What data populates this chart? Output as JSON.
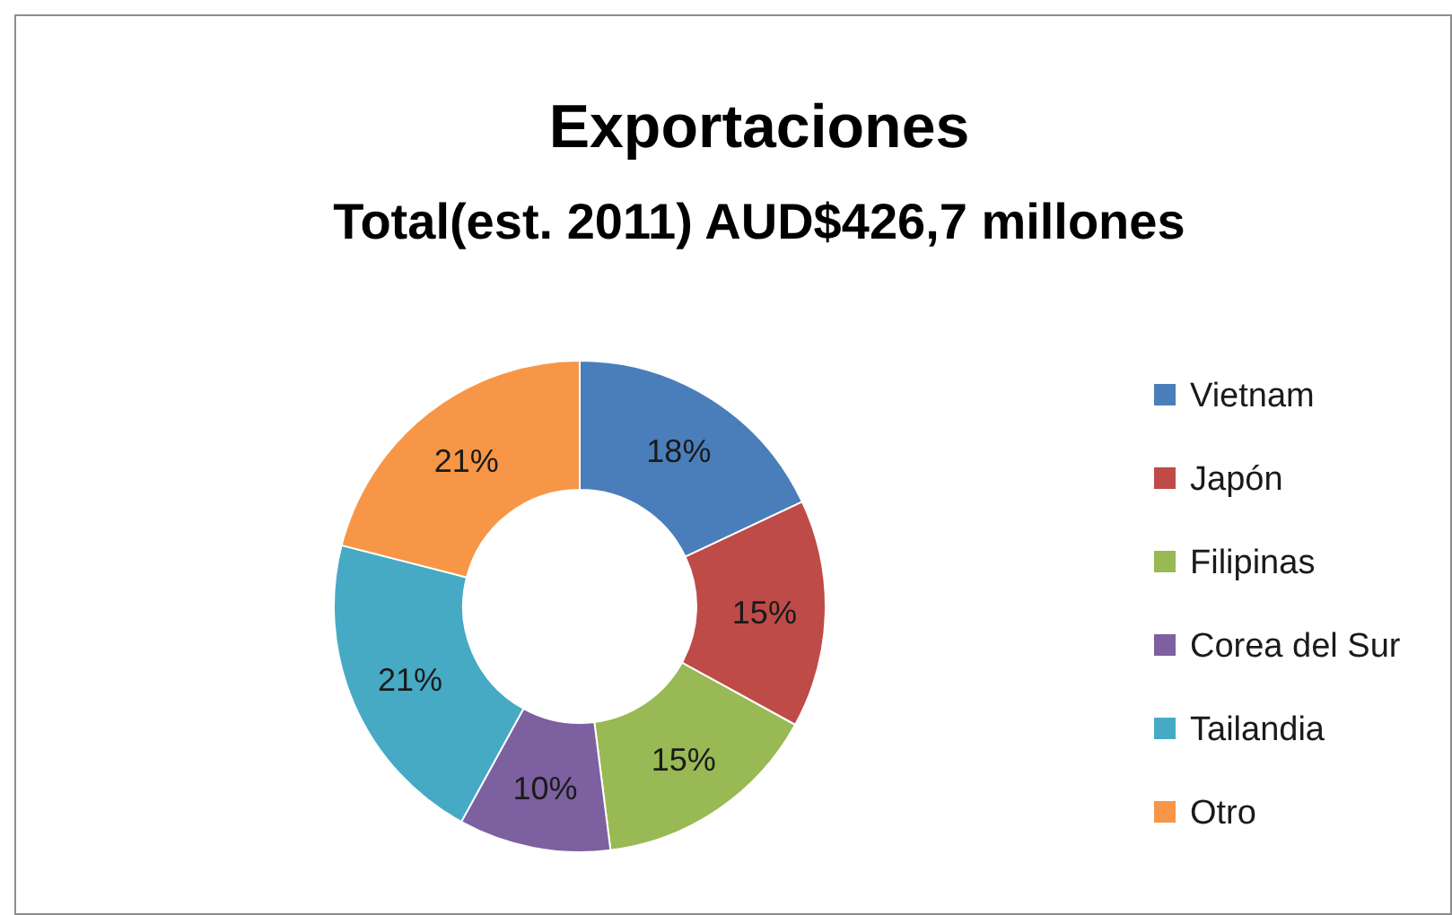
{
  "chart_data": {
    "type": "donut",
    "title": "Exportaciones",
    "subtitle": "Total(est. 2011) AUD$426,7 millones",
    "categories": [
      "Vietnam",
      "Japón",
      "Filipinas",
      "Corea del Sur",
      "Tailandia",
      "Otro"
    ],
    "values": [
      18,
      15,
      15,
      10,
      21,
      21
    ],
    "colors": [
      "#4a7ebb",
      "#be4b48",
      "#98b954",
      "#7d60a0",
      "#46aac5",
      "#f79646"
    ],
    "value_labels": [
      "18%",
      "15%",
      "15%",
      "10%",
      "21%",
      "21%"
    ],
    "legend": "right"
  }
}
